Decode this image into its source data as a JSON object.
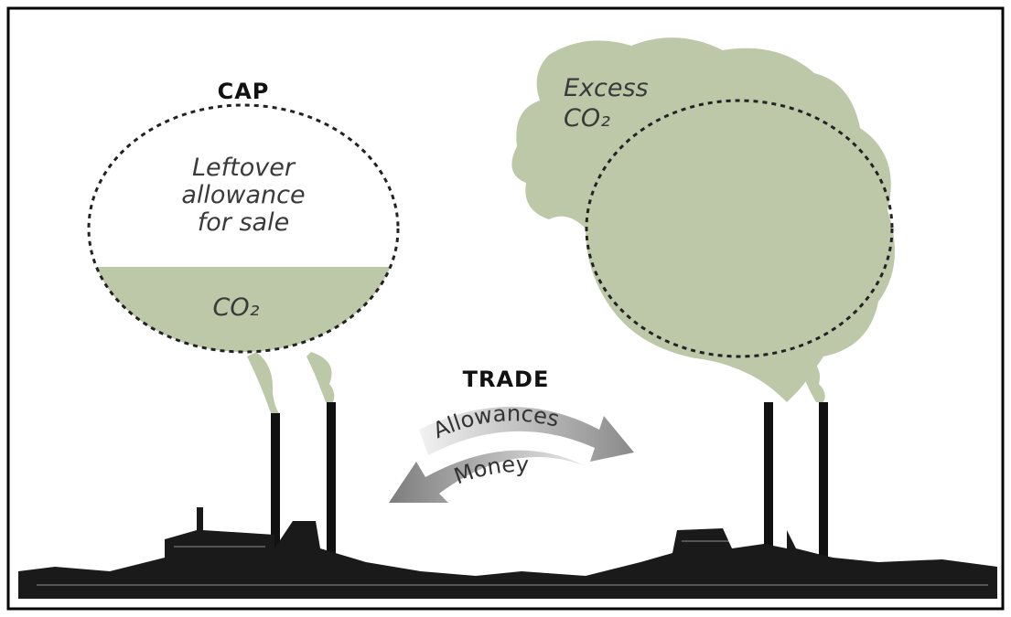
{
  "cap": {
    "title": "CAP",
    "label_lines": [
      "Leftover",
      "allowance",
      "for sale"
    ],
    "emission": "CO₂"
  },
  "excess": {
    "label_lines": [
      "Excess",
      "CO₂"
    ]
  },
  "trade": {
    "title": "TRADE",
    "arrows": [
      "Allowances",
      "Money"
    ]
  }
}
